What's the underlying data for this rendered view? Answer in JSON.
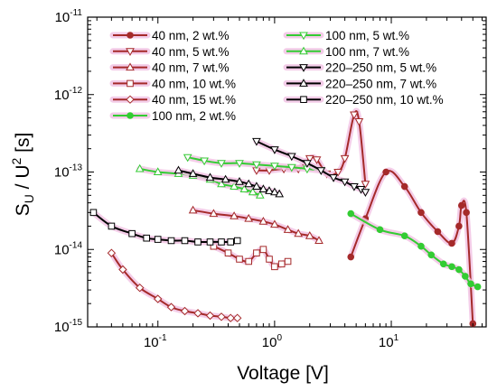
{
  "chart_data": {
    "type": "line",
    "title": "",
    "xlabel": "Voltage [V]",
    "ylabel": {
      "base": "S",
      "sub": "U",
      "mid": " / U",
      "sup": "2",
      "unit": " [s]"
    },
    "xscale": "log",
    "yscale": "log",
    "xlim": [
      0.025,
      65
    ],
    "ylim": [
      1e-15,
      1e-11
    ],
    "xticks": [
      {
        "value": 0.1,
        "base": "10",
        "exp": "-1"
      },
      {
        "value": 1,
        "base": "10",
        "exp": "0"
      },
      {
        "value": 10,
        "base": "10",
        "exp": "1"
      }
    ],
    "yticks": [
      {
        "value": 1e-15,
        "base": "10",
        "exp": "-15"
      },
      {
        "value": 1e-14,
        "base": "10",
        "exp": "-14"
      },
      {
        "value": 1e-13,
        "base": "10",
        "exp": "-13"
      },
      {
        "value": 1e-12,
        "base": "10",
        "exp": "-12"
      },
      {
        "value": 1e-11,
        "base": "10",
        "exp": "-11"
      }
    ],
    "grid": false,
    "legend_position": "top",
    "colors": {
      "brown": "#a52a2a",
      "green": "#33cc33",
      "black": "#000000",
      "halo": "#f2c4e4"
    },
    "series": [
      {
        "name": "40 nm, 2 wt.%",
        "color": "#a52a2a",
        "marker": "circle",
        "filled": true,
        "x": [
          4.5,
          6,
          9,
          13,
          18,
          25,
          33,
          38,
          40,
          44,
          50
        ],
        "y": [
          8e-15,
          2.5e-14,
          1e-13,
          6.5e-14,
          3e-14,
          1.7e-14,
          1.2e-14,
          2e-14,
          3.7e-14,
          3e-14,
          1.1e-15
        ]
      },
      {
        "name": "40 nm, 5 wt.%",
        "color": "#a52a2a",
        "marker": "tri-down",
        "filled": false,
        "x": [
          0.7,
          0.9,
          1.2,
          1.6,
          2.0,
          2.3,
          2.8,
          3.5,
          4.0,
          4.8,
          5.3,
          6.0
        ],
        "y": [
          1.05e-13,
          1.05e-13,
          1.1e-13,
          1.1e-13,
          1.5e-13,
          1.45e-13,
          9.5e-14,
          1e-13,
          1.5e-13,
          5.5e-13,
          4.5e-13,
          7e-14
        ]
      },
      {
        "name": "40 nm, 7 wt.%",
        "color": "#a52a2a",
        "marker": "tri-up",
        "filled": false,
        "x": [
          0.2,
          0.3,
          0.45,
          0.6,
          0.8,
          1.0,
          1.3,
          1.6,
          2.0,
          2.4
        ],
        "y": [
          3.2e-14,
          2.9e-14,
          2.7e-14,
          2.5e-14,
          2.3e-14,
          2.1e-14,
          1.8e-14,
          1.6e-14,
          1.5e-14,
          1.3e-14
        ]
      },
      {
        "name": "40 nm, 10 wt.%",
        "color": "#a52a2a",
        "marker": "square",
        "filled": false,
        "x": [
          0.3,
          0.4,
          0.5,
          0.6,
          0.7,
          0.8,
          0.9,
          1.0,
          1.15,
          1.3
        ],
        "y": [
          1.1e-14,
          9e-15,
          7.5e-15,
          7e-15,
          9e-15,
          1e-14,
          7.5e-15,
          6e-15,
          6.5e-15,
          7e-15
        ]
      },
      {
        "name": "40 nm, 15 wt.%",
        "color": "#a52a2a",
        "marker": "diamond",
        "filled": false,
        "x": [
          0.04,
          0.05,
          0.07,
          0.1,
          0.13,
          0.17,
          0.22,
          0.28,
          0.35,
          0.42,
          0.48
        ],
        "y": [
          9e-15,
          5.5e-15,
          3.2e-15,
          2.3e-15,
          1.8e-15,
          1.6e-15,
          1.5e-15,
          1.4e-15,
          1.35e-15,
          1.3e-15,
          1.3e-15
        ]
      },
      {
        "name": "100 nm, 2 wt.%",
        "color": "#33cc33",
        "marker": "circle",
        "filled": true,
        "x": [
          4.5,
          8,
          13,
          18,
          22,
          28,
          33,
          38,
          43,
          48,
          55
        ],
        "y": [
          2.9e-14,
          1.8e-14,
          1.5e-14,
          1.1e-14,
          8.5e-15,
          6.5e-15,
          6e-15,
          5.5e-15,
          4.5e-15,
          3.6e-15,
          3.3e-15
        ]
      },
      {
        "name": "100 nm, 5 wt.%",
        "color": "#33cc33",
        "marker": "tri-down",
        "filled": false,
        "x": [
          0.18,
          0.25,
          0.35,
          0.5,
          0.7,
          1.0,
          1.4,
          1.9,
          2.5
        ],
        "y": [
          1.55e-13,
          1.4e-13,
          1.3e-13,
          1.3e-13,
          1.25e-13,
          1.2e-13,
          1.15e-13,
          1.1e-13,
          1.05e-13
        ]
      },
      {
        "name": "100 nm, 7 wt.%",
        "color": "#33cc33",
        "marker": "tri-up",
        "filled": false,
        "x": [
          0.07,
          0.1,
          0.15,
          0.2,
          0.28,
          0.35,
          0.45,
          0.55,
          0.65,
          0.75
        ],
        "y": [
          1.1e-13,
          1e-13,
          9.5e-14,
          9e-14,
          8e-14,
          7e-14,
          6.5e-14,
          6e-14,
          5.5e-14,
          5e-14
        ]
      },
      {
        "name": "220–250 nm, 5 wt.%",
        "color": "#000000",
        "marker": "tri-down",
        "filled": false,
        "x": [
          0.7,
          1.0,
          1.4,
          1.9,
          2.5,
          3.2,
          4.0,
          4.8,
          5.5,
          6.0
        ],
        "y": [
          2.5e-13,
          1.95e-13,
          1.6e-13,
          1.3e-13,
          1.05e-13,
          8.5e-14,
          7.5e-14,
          6.5e-14,
          6e-14,
          5.5e-14
        ]
      },
      {
        "name": "220–250 nm, 7 wt.%",
        "color": "#000000",
        "marker": "tri-up",
        "filled": false,
        "x": [
          0.15,
          0.2,
          0.28,
          0.38,
          0.5,
          0.6,
          0.7,
          0.8,
          0.9,
          1.0,
          1.1
        ],
        "y": [
          1.05e-13,
          9.5e-14,
          8.5e-14,
          8e-14,
          7.5e-14,
          7e-14,
          6.5e-14,
          6e-14,
          5.7e-14,
          5.5e-14,
          5.2e-14
        ]
      },
      {
        "name": "220–250 nm, 10 wt.%",
        "color": "#000000",
        "marker": "square",
        "filled": false,
        "x": [
          0.028,
          0.04,
          0.06,
          0.08,
          0.1,
          0.13,
          0.17,
          0.22,
          0.28,
          0.35,
          0.42,
          0.48
        ],
        "y": [
          3e-14,
          2e-14,
          1.6e-14,
          1.4e-14,
          1.35e-14,
          1.3e-14,
          1.3e-14,
          1.25e-14,
          1.25e-14,
          1.25e-14,
          1.25e-14,
          1.3e-14
        ]
      }
    ]
  }
}
